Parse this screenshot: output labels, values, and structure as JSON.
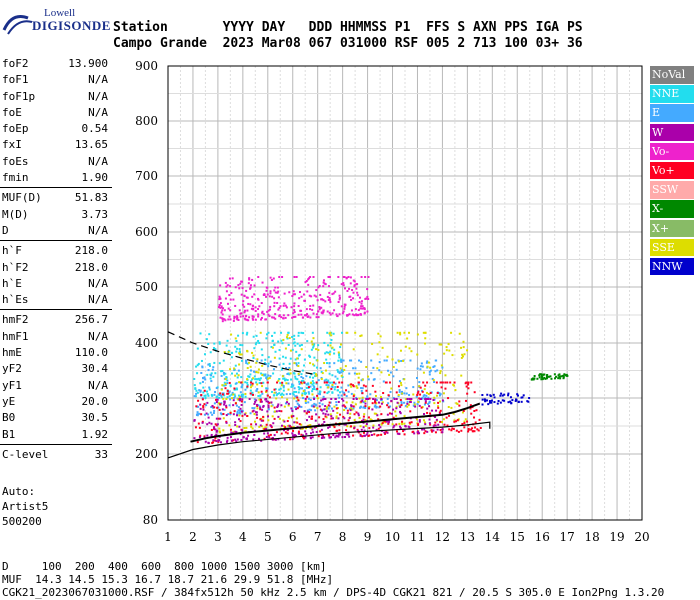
{
  "logo": {
    "brand": "Lowell",
    "product": "DIGISONDE"
  },
  "header": {
    "labels": "Station       YYYY DAY   DDD HHMMSS P1  FFS S AXN PPS IGA PS",
    "values": "Campo Grande  2023 Mar08 067 031000 RSF 005 2 713 100 03+ 36"
  },
  "params": [
    {
      "name": "foF2",
      "value": "13.900"
    },
    {
      "name": "foF1",
      "value": "N/A"
    },
    {
      "name": "foF1p",
      "value": "N/A"
    },
    {
      "name": "foE",
      "value": "N/A"
    },
    {
      "name": "foEp",
      "value": "0.54"
    },
    {
      "name": "fxI",
      "value": "13.65"
    },
    {
      "name": "foEs",
      "value": "N/A"
    },
    {
      "name": "fmin",
      "value": "1.90"
    },
    {
      "name": "MUF(D)",
      "value": "51.83"
    },
    {
      "name": "M(D)",
      "value": "3.73"
    },
    {
      "name": "D",
      "value": "N/A"
    },
    {
      "name": "h`F",
      "value": "218.0"
    },
    {
      "name": "h`F2",
      "value": "218.0"
    },
    {
      "name": "h`E",
      "value": "N/A"
    },
    {
      "name": "h`Es",
      "value": "N/A"
    },
    {
      "name": "hmF2",
      "value": "256.7"
    },
    {
      "name": "hmF1",
      "value": "N/A"
    },
    {
      "name": "hmE",
      "value": "110.0"
    },
    {
      "name": "yF2",
      "value": "30.4"
    },
    {
      "name": "yF1",
      "value": "N/A"
    },
    {
      "name": "yE",
      "value": "20.0"
    },
    {
      "name": "B0",
      "value": "30.5"
    },
    {
      "name": "B1",
      "value": "1.92"
    },
    {
      "name": "C-level",
      "value": "33"
    }
  ],
  "auto": {
    "line1": "Auto:",
    "line2": "Artist5",
    "line3": "500200"
  },
  "legend": [
    {
      "label": "NoVal",
      "color": "#808080"
    },
    {
      "label": "NNE",
      "color": "#22ddee"
    },
    {
      "label": "E",
      "color": "#44aaff"
    },
    {
      "label": "W",
      "color": "#aa00aa"
    },
    {
      "label": "Vo-",
      "color": "#ee22cc"
    },
    {
      "label": "Vo+",
      "color": "#ff0022"
    },
    {
      "label": "SSW",
      "color": "#ffaaaa"
    },
    {
      "label": "X-",
      "color": "#008800"
    },
    {
      "label": "X+",
      "color": "#88bb66"
    },
    {
      "label": "SSE",
      "color": "#dddd00"
    },
    {
      "label": "NNW",
      "color": "#0000cc"
    }
  ],
  "footer": {
    "line1": "D     100  200  400  600  800 1000 1500 3000 [km]",
    "line2": "MUF  14.3 14.5 15.3 16.7 18.7 21.6 29.9 51.8 [MHz]",
    "line3": "CGK21_2023067031000.RSF / 384fx512h 50 kHz 2.5 km / DPS-4D CGK21 821 / 20.5 S 305.0 E Ion2Png 1.3.20"
  },
  "chart_data": {
    "type": "scatter",
    "title": "",
    "xlabel": "",
    "ylabel": "",
    "xlim": [
      1,
      20
    ],
    "ylim": [
      80,
      900
    ],
    "x_ticks": [
      "1",
      "2",
      "3",
      "4",
      "5",
      "6",
      "7",
      "8",
      "9",
      "10",
      "11",
      "12",
      "13",
      "14",
      "15",
      "16",
      "17",
      "18",
      "19",
      "20"
    ],
    "y_ticks": [
      "80",
      "200",
      "300",
      "400",
      "500",
      "600",
      "700",
      "800",
      "900"
    ],
    "y_tick_values": [
      80,
      200,
      300,
      400,
      500,
      600,
      700,
      800,
      900
    ],
    "y_scale": "nonlinear (true height + virtual height)",
    "grid": true,
    "legend_position": "right",
    "trace_o_mode_virtual_height": {
      "x": [
        1.9,
        2.5,
        3,
        4,
        5,
        6,
        7,
        8,
        9,
        10,
        11,
        12,
        12.5,
        13,
        13.5
      ],
      "y": [
        222,
        228,
        232,
        238,
        242,
        246,
        250,
        254,
        258,
        262,
        266,
        270,
        275,
        282,
        290
      ]
    },
    "profile_true_height": {
      "x": [
        1,
        2,
        3,
        4,
        6,
        8,
        10,
        12,
        13,
        13.9,
        13.9
      ],
      "y": [
        193,
        208,
        216,
        222,
        230,
        238,
        243,
        248,
        252,
        256.7,
        245
      ]
    },
    "profile_topside_dashed": {
      "x": [
        1,
        2,
        3,
        4,
        5,
        6,
        7
      ],
      "y": [
        420,
        400,
        385,
        372,
        360,
        350,
        342
      ]
    },
    "scatter_clouds": [
      {
        "series": "NNE",
        "x": [
          2,
          8
        ],
        "y": [
          300,
          420
        ]
      },
      {
        "series": "E",
        "x": [
          2,
          12
        ],
        "y": [
          270,
          370
        ]
      },
      {
        "series": "SSE",
        "x": [
          3,
          13
        ],
        "y": [
          240,
          420
        ]
      },
      {
        "series": "Vo+",
        "x": [
          2,
          13.5
        ],
        "y": [
          220,
          330
        ]
      },
      {
        "series": "W",
        "x": [
          2,
          12
        ],
        "y": [
          220,
          300
        ]
      },
      {
        "series": "Vo-",
        "x": [
          3,
          9
        ],
        "y": [
          440,
          520
        ]
      },
      {
        "series": "NNW",
        "x": [
          13.5,
          15.5
        ],
        "y": [
          290,
          310
        ]
      },
      {
        "series": "X-",
        "x": [
          15.5,
          17
        ],
        "y": [
          335,
          345
        ]
      }
    ]
  }
}
